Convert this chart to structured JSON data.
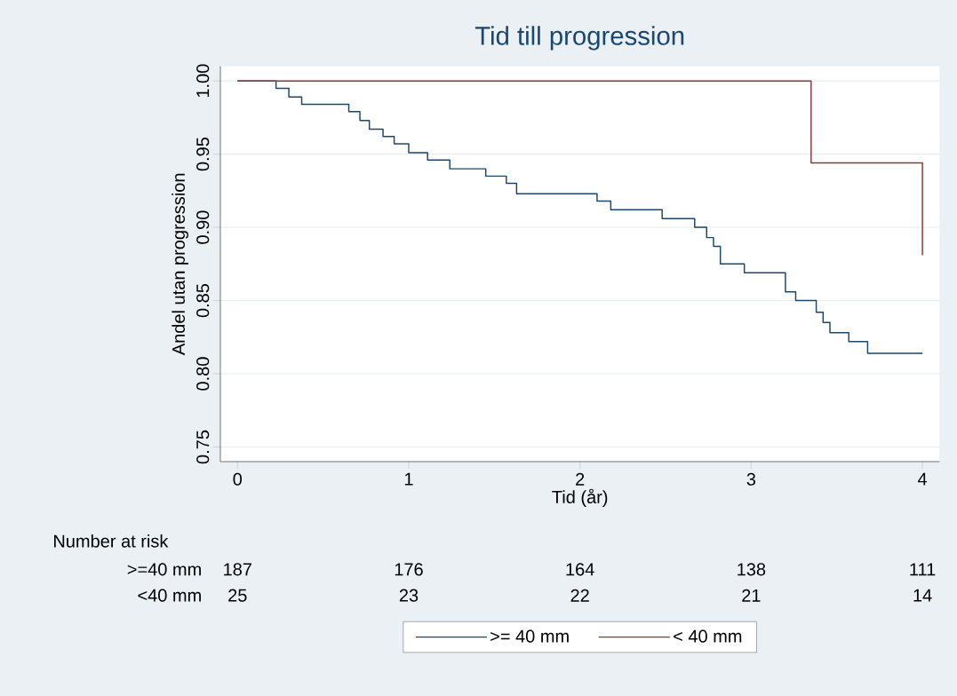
{
  "chart_data": {
    "type": "step",
    "title": "Tid till progression",
    "xlabel": "Tid (år)",
    "ylabel": "Andel utan progression",
    "xlim": [
      -0.1,
      4.1
    ],
    "ylim": [
      0.74,
      1.01
    ],
    "xticks": [
      0,
      1,
      2,
      3,
      4
    ],
    "yticks": [
      {
        "value": 0.75,
        "label": "0.75"
      },
      {
        "value": 0.8,
        "label": "0.80"
      },
      {
        "value": 0.85,
        "label": "0.85"
      },
      {
        "value": 0.9,
        "label": "0.90"
      },
      {
        "value": 0.95,
        "label": "0.95"
      },
      {
        "value": 1.0,
        "label": "1.00"
      }
    ],
    "grid": "y",
    "legend": "bottom",
    "series": [
      {
        "name": ">= 40 mm",
        "color": "#1a476f",
        "x": [
          0,
          0.225,
          0.3,
          0.375,
          0.65,
          0.715,
          0.77,
          0.85,
          0.915,
          1.0,
          1.11,
          1.24,
          1.45,
          1.57,
          1.63,
          2.1,
          2.18,
          2.48,
          2.67,
          2.74,
          2.78,
          2.82,
          2.96,
          3.2,
          3.26,
          3.38,
          3.42,
          3.46,
          3.57,
          3.68,
          4.0
        ],
        "values": [
          1.0,
          0.995,
          0.989,
          0.984,
          0.979,
          0.973,
          0.967,
          0.962,
          0.957,
          0.951,
          0.946,
          0.94,
          0.935,
          0.93,
          0.923,
          0.918,
          0.912,
          0.906,
          0.9,
          0.893,
          0.887,
          0.875,
          0.869,
          0.856,
          0.85,
          0.842,
          0.835,
          0.828,
          0.822,
          0.814,
          0.814
        ]
      },
      {
        "name": "< 40 mm",
        "color": "#90353b",
        "x": [
          0,
          3.35,
          4.0
        ],
        "values": [
          1.0,
          0.944,
          0.881
        ]
      }
    ],
    "annotations": [
      "Number at risk",
      ">=40 mm",
      "187",
      "176",
      "164",
      "138",
      "111",
      "<40 mm",
      "25",
      "23",
      "22",
      "21",
      "14"
    ]
  }
}
